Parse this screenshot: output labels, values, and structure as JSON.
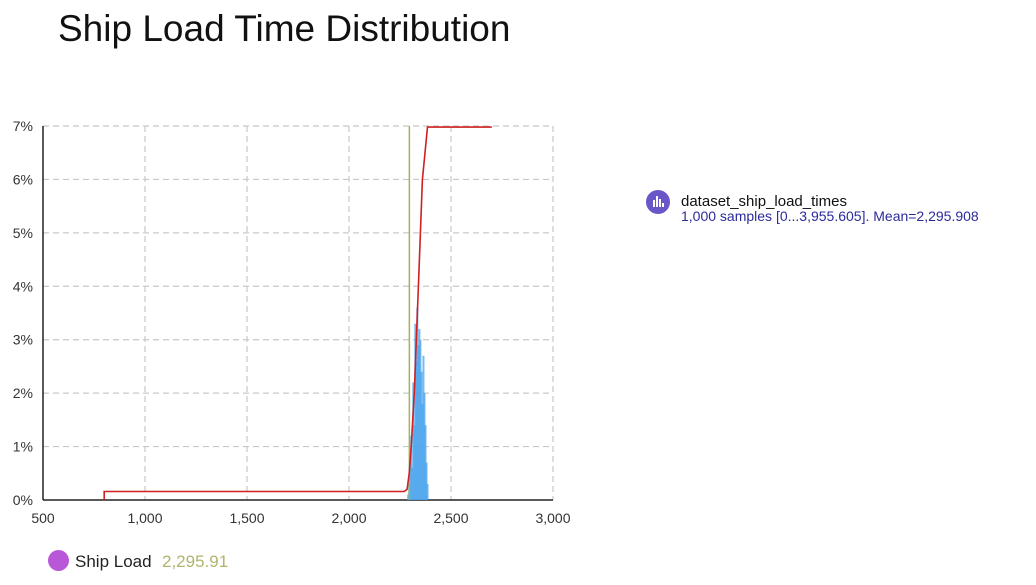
{
  "title": "Ship Load Time Distribution",
  "legend": {
    "series_name": "dataset_ship_load_times",
    "series_desc": "1,000 samples [0...3,955.605]. Mean=2,295.908",
    "icon": "histogram-icon"
  },
  "marker": {
    "label": "Ship Load",
    "value": "2,295.91",
    "dot_color": "#b858d8",
    "value_color": "#b2b46c"
  },
  "chart_data": {
    "type": "histogram",
    "title": "Ship Load Time Distribution",
    "xlim": [
      500,
      3000
    ],
    "ylim": [
      0,
      7
    ],
    "x_ticks": [
      500,
      1000,
      1500,
      2000,
      2500,
      3000
    ],
    "x_tick_labels": [
      "500",
      "1,000",
      "1,500",
      "2,000",
      "2,500",
      "3,000"
    ],
    "y_ticks": [
      0,
      1,
      2,
      3,
      4,
      5,
      6,
      7
    ],
    "y_tick_labels": [
      "0%",
      "1%",
      "2%",
      "3%",
      "4%",
      "5%",
      "6%",
      "7%"
    ],
    "grid": true,
    "legend_position": "right",
    "colors": {
      "bars": "#4aa3ec",
      "cdf": "#d02020",
      "mean_line": "#a4b25c"
    },
    "mean": 2295.908,
    "histogram_bins": [
      {
        "x": 2290,
        "y": 0.1
      },
      {
        "x": 2295,
        "y": 0.3
      },
      {
        "x": 2300,
        "y": 0.8
      },
      {
        "x": 2305,
        "y": 1.2
      },
      {
        "x": 2310,
        "y": 0.6
      },
      {
        "x": 2315,
        "y": 2.2
      },
      {
        "x": 2320,
        "y": 1.4
      },
      {
        "x": 2325,
        "y": 3.3
      },
      {
        "x": 2330,
        "y": 2.6
      },
      {
        "x": 2335,
        "y": 3.6
      },
      {
        "x": 2340,
        "y": 2.9
      },
      {
        "x": 2345,
        "y": 3.2
      },
      {
        "x": 2350,
        "y": 3.0
      },
      {
        "x": 2355,
        "y": 2.4
      },
      {
        "x": 2360,
        "y": 1.8
      },
      {
        "x": 2365,
        "y": 2.7
      },
      {
        "x": 2370,
        "y": 2.0
      },
      {
        "x": 2375,
        "y": 1.4
      },
      {
        "x": 2380,
        "y": 0.7
      },
      {
        "x": 2385,
        "y": 0.3
      }
    ],
    "cdf_line": [
      [
        800,
        0
      ],
      [
        800,
        0.16
      ],
      [
        2270,
        0.16
      ],
      [
        2285,
        0.2
      ],
      [
        2295,
        0.5
      ],
      [
        2305,
        1.0
      ],
      [
        2320,
        2.0
      ],
      [
        2330,
        3.0
      ],
      [
        2340,
        4.0
      ],
      [
        2350,
        5.0
      ],
      [
        2360,
        6.0
      ],
      [
        2370,
        6.4
      ],
      [
        2375,
        6.6
      ],
      [
        2385,
        6.98
      ],
      [
        2700,
        6.98
      ]
    ]
  }
}
